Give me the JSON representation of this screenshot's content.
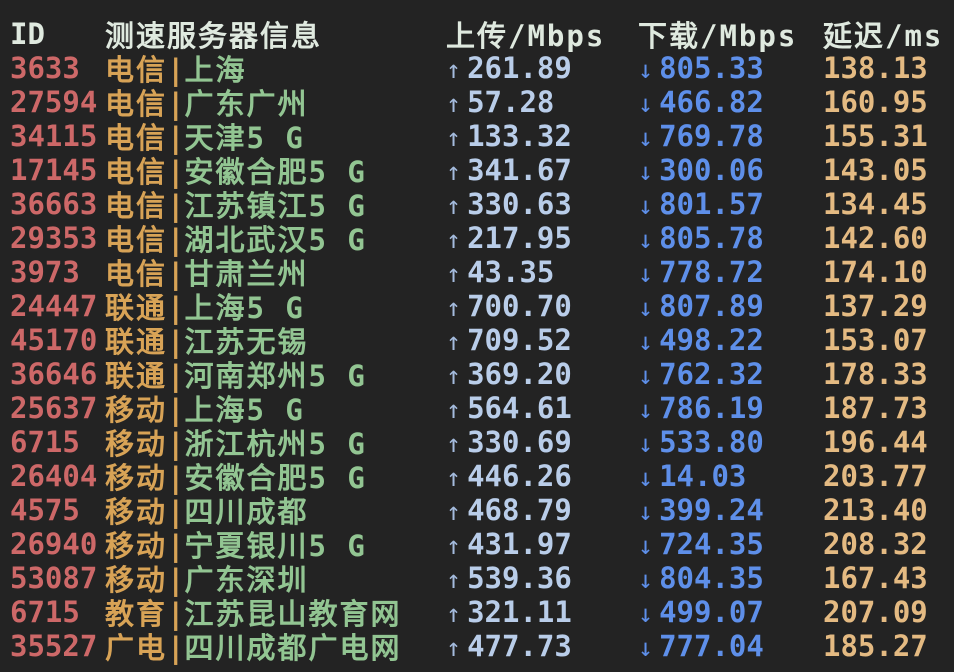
{
  "colors": {
    "bg": "#232323",
    "header": "#dfe9df",
    "id": "#cd6868",
    "carrier": "#d8a356",
    "location": "#92c592",
    "upload": "#b9cde9",
    "upload_arrow": "#a4bbdd",
    "download": "#5e8fe9",
    "latency": "#e4ba82"
  },
  "table": {
    "columns": {
      "id": "ID",
      "server": "测速服务器信息",
      "upload": "上传/Mbps",
      "download": "下载/Mbps",
      "latency": "延迟/ms"
    },
    "symbols": {
      "separator": "|",
      "up_arrow": "↑",
      "down_arrow": "↓"
    },
    "rows": [
      {
        "id": "3633",
        "carrier": "电信",
        "location": "上海",
        "upload": "261.89",
        "download": "805.33",
        "latency": "138.13"
      },
      {
        "id": "27594",
        "carrier": "电信",
        "location": "广东广州",
        "upload": "57.28",
        "download": "466.82",
        "latency": "160.95"
      },
      {
        "id": "34115",
        "carrier": "电信",
        "location": "天津5 G",
        "upload": "133.32",
        "download": "769.78",
        "latency": "155.31"
      },
      {
        "id": "17145",
        "carrier": "电信",
        "location": "安徽合肥5 G",
        "upload": "341.67",
        "download": "300.06",
        "latency": "143.05"
      },
      {
        "id": "36663",
        "carrier": "电信",
        "location": "江苏镇江5 G",
        "upload": "330.63",
        "download": "801.57",
        "latency": "134.45"
      },
      {
        "id": "29353",
        "carrier": "电信",
        "location": "湖北武汉5 G",
        "upload": "217.95",
        "download": "805.78",
        "latency": "142.60"
      },
      {
        "id": "3973",
        "carrier": "电信",
        "location": "甘肃兰州",
        "upload": "43.35",
        "download": "778.72",
        "latency": "174.10"
      },
      {
        "id": "24447",
        "carrier": "联通",
        "location": "上海5 G",
        "upload": "700.70",
        "download": "807.89",
        "latency": "137.29"
      },
      {
        "id": "45170",
        "carrier": "联通",
        "location": "江苏无锡",
        "upload": "709.52",
        "download": "498.22",
        "latency": "153.07"
      },
      {
        "id": "36646",
        "carrier": "联通",
        "location": "河南郑州5 G",
        "upload": "369.20",
        "download": "762.32",
        "latency": "178.33"
      },
      {
        "id": "25637",
        "carrier": "移动",
        "location": "上海5 G",
        "upload": "564.61",
        "download": "786.19",
        "latency": "187.73"
      },
      {
        "id": "6715",
        "carrier": "移动",
        "location": "浙江杭州5 G",
        "upload": "330.69",
        "download": "533.80",
        "latency": "196.44"
      },
      {
        "id": "26404",
        "carrier": "移动",
        "location": "安徽合肥5 G",
        "upload": "446.26",
        "download": "14.03",
        "latency": "203.77"
      },
      {
        "id": "4575",
        "carrier": "移动",
        "location": "四川成都",
        "upload": "468.79",
        "download": "399.24",
        "latency": "213.40"
      },
      {
        "id": "26940",
        "carrier": "移动",
        "location": "宁夏银川5 G",
        "upload": "431.97",
        "download": "724.35",
        "latency": "208.32"
      },
      {
        "id": "53087",
        "carrier": "移动",
        "location": "广东深圳",
        "upload": "539.36",
        "download": "804.35",
        "latency": "167.43"
      },
      {
        "id": "6715",
        "carrier": "教育",
        "location": "江苏昆山教育网",
        "upload": "321.11",
        "download": "499.07",
        "latency": "207.09"
      },
      {
        "id": "35527",
        "carrier": "广电",
        "location": "四川成都广电网",
        "upload": "477.73",
        "download": "777.04",
        "latency": "185.27"
      }
    ]
  }
}
